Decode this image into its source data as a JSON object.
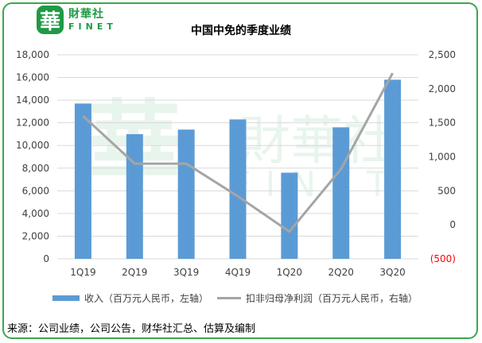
{
  "logo": {
    "glyph": "華",
    "name_cn": "財華社",
    "name_en": "FINET"
  },
  "watermark": {
    "text_cn": "財華社",
    "text_en": "FINET",
    "glyph": "華"
  },
  "footer": {
    "source": "来源：公司业绩，公司公告，财华社汇总、估算及编制"
  },
  "colors": {
    "bar": "#5b9bd5",
    "line": "#a5a5a5",
    "negative_tick": "#ff0000",
    "border": "#3aa84a",
    "grid": "#d9d9d9"
  },
  "chart_data": {
    "type": "bar",
    "title": "中国中免的季度业绩",
    "categories": [
      "1Q19",
      "2Q19",
      "3Q19",
      "4Q19",
      "1Q20",
      "2Q20",
      "3Q20"
    ],
    "series": [
      {
        "name": "收入（百万元人民币，左轴）",
        "type": "bar",
        "axis": "left",
        "values": [
          13700,
          11000,
          11400,
          12300,
          7600,
          11600,
          15800
        ]
      },
      {
        "name": "扣非归母净利润（百万元人民币，右轴）",
        "type": "line",
        "axis": "right",
        "values": [
          1600,
          900,
          900,
          420,
          -100,
          820,
          2230
        ]
      }
    ],
    "y_left": {
      "min": 0,
      "max": 18000,
      "ticks": [
        "0",
        "2,000",
        "4,000",
        "6,000",
        "8,000",
        "10,000",
        "12,000",
        "14,000",
        "16,000",
        "18,000"
      ]
    },
    "y_right": {
      "min": -500,
      "max": 2500,
      "ticks": [
        "(500)",
        "0",
        "500",
        "1,000",
        "1,500",
        "2,000",
        "2,500"
      ]
    },
    "grid": true,
    "legend": "bottom"
  }
}
